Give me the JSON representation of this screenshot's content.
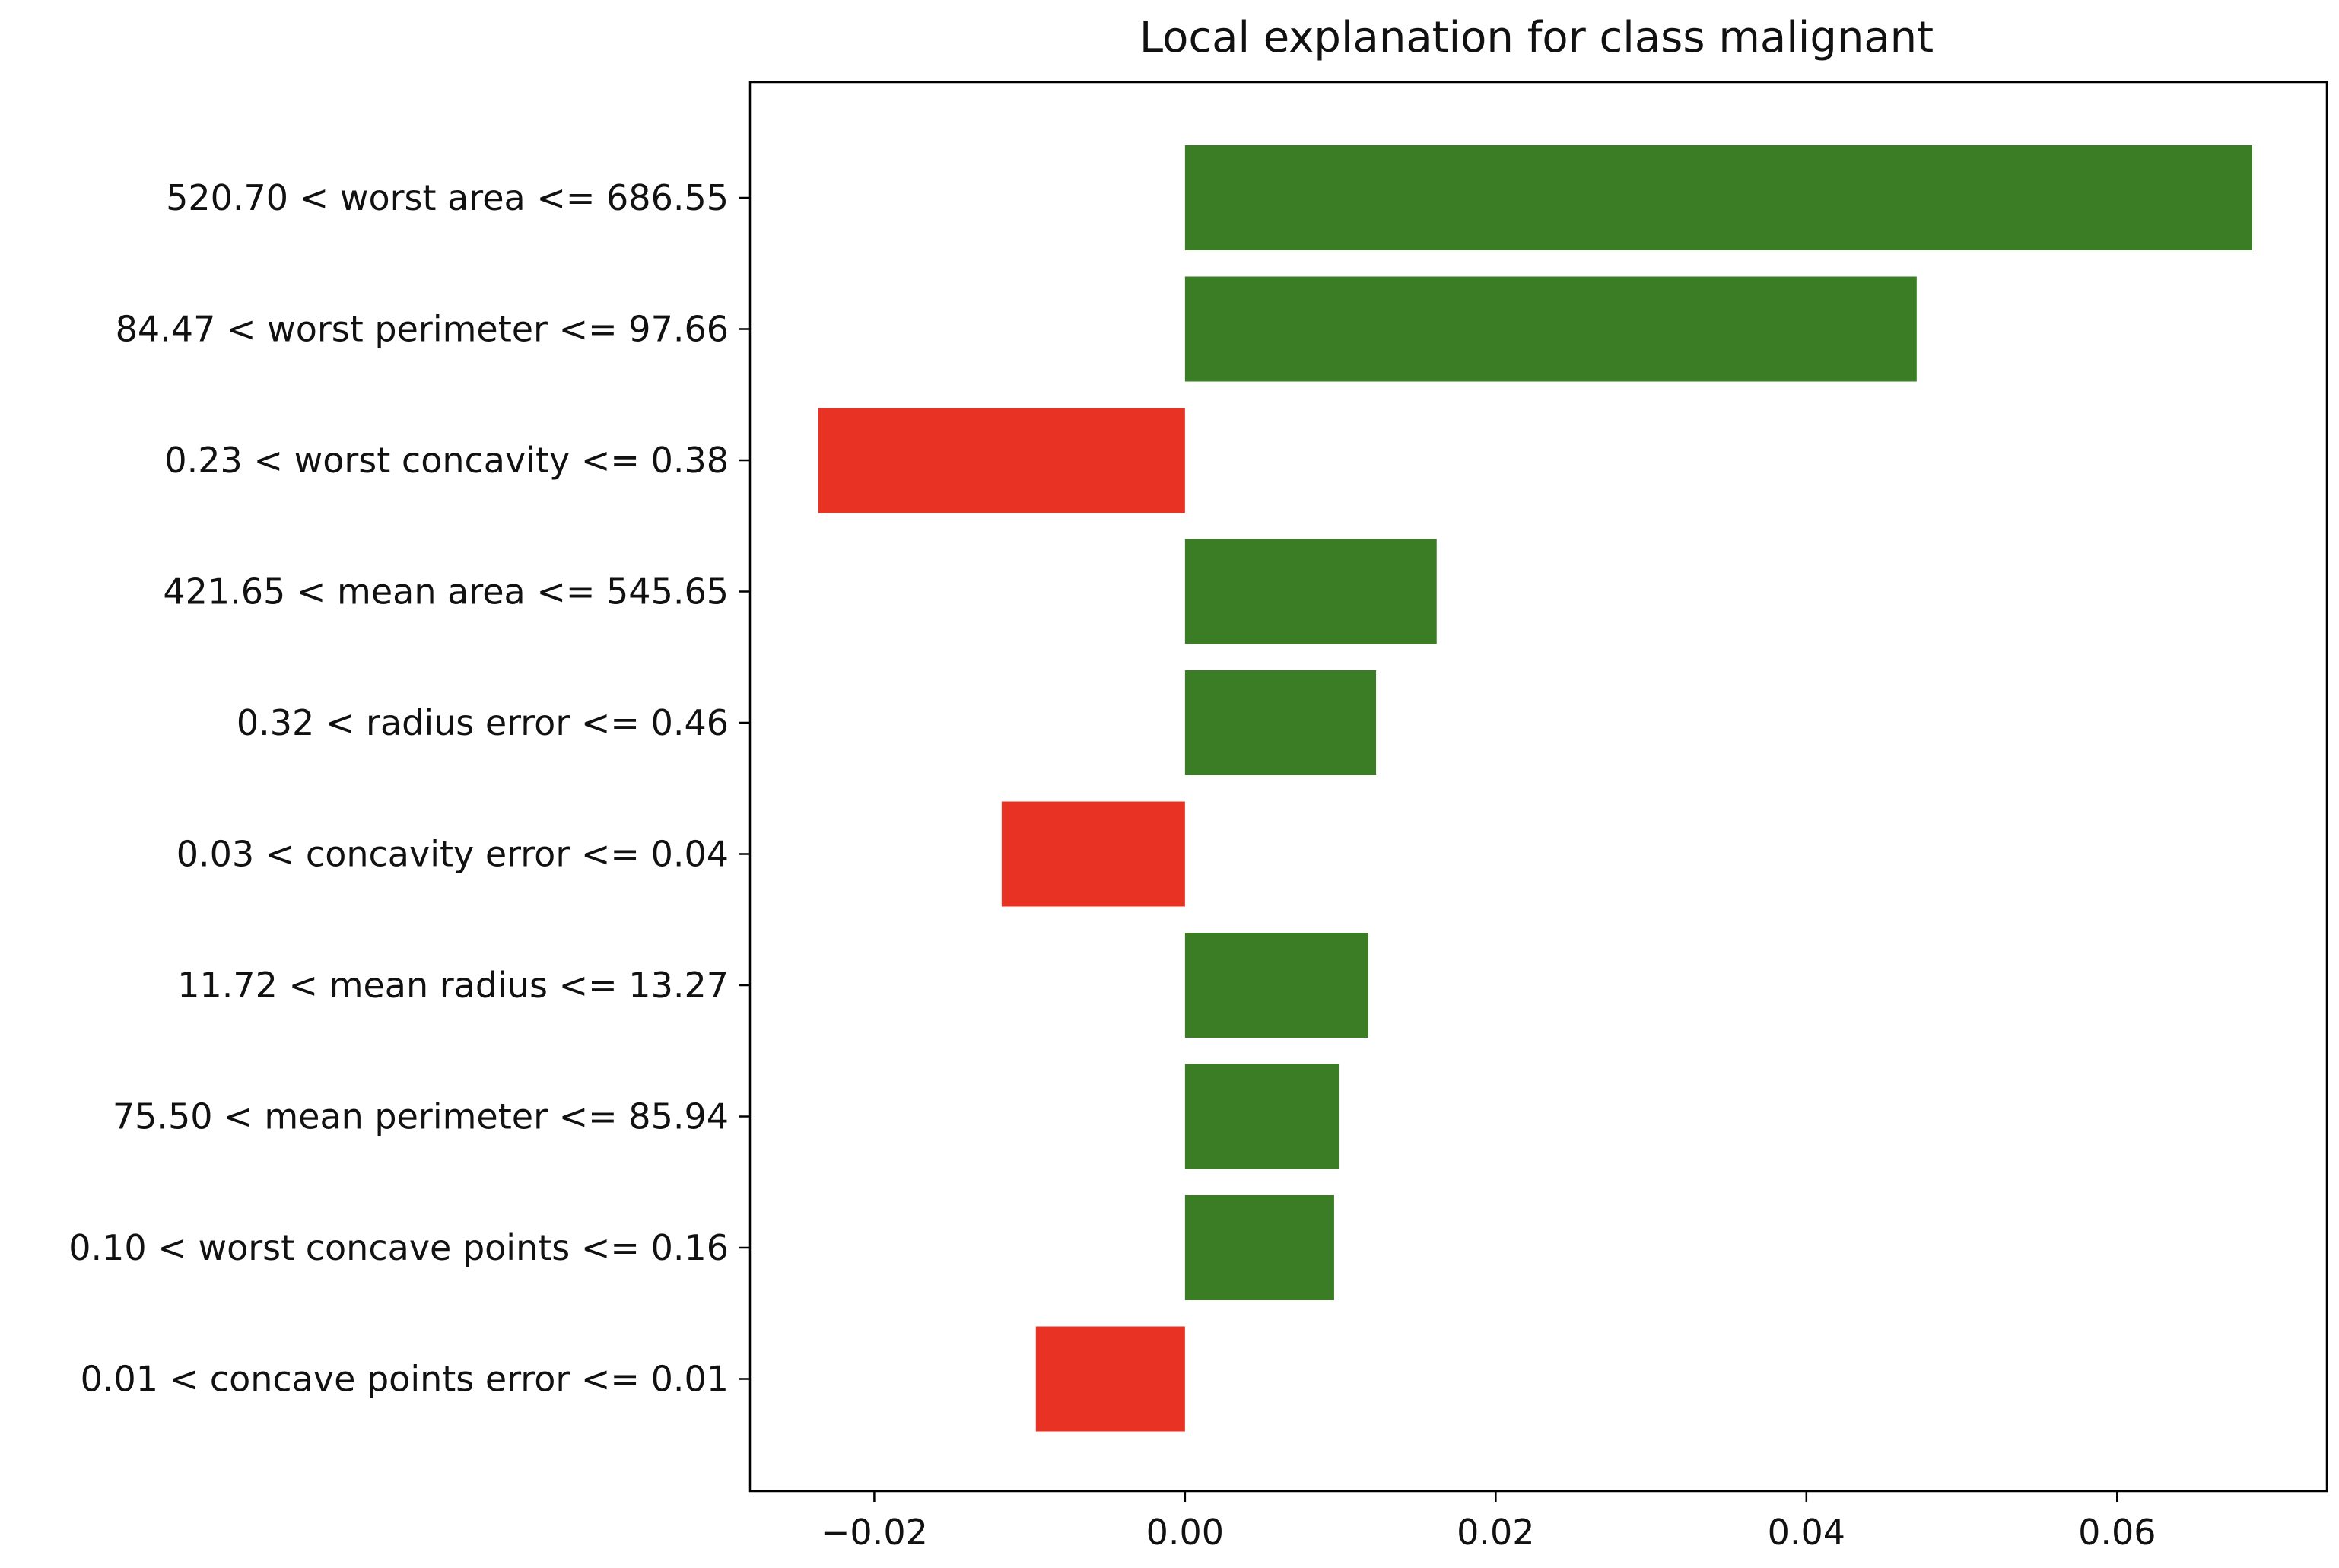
{
  "chart_data": {
    "type": "bar",
    "orientation": "horizontal",
    "title": "Local explanation for class malignant",
    "xlabel": "",
    "ylabel": "",
    "xlim": [
      -0.028,
      0.0735
    ],
    "x_ticks": [
      -0.02,
      0.0,
      0.02,
      0.04,
      0.06
    ],
    "x_tick_labels": [
      "−0.02",
      "0.00",
      "0.02",
      "0.04",
      "0.06"
    ],
    "grid": false,
    "legend": "none",
    "positive_color": "#3a7d24",
    "negative_color": "#e83224",
    "categories": [
      "520.70 < worst area <= 686.55",
      "84.47 < worst perimeter <= 97.66",
      "0.23 < worst concavity <= 0.38",
      "421.65 < mean area <= 545.65",
      "0.32 < radius error <= 0.46",
      "0.03 < concavity error <= 0.04",
      "11.72 < mean radius <= 13.27",
      "75.50 < mean perimeter <= 85.94",
      "0.10 < worst concave points <= 0.16",
      "0.01 < concave points error <= 0.01"
    ],
    "values": [
      0.0687,
      0.0471,
      -0.0236,
      0.0162,
      0.0123,
      -0.0118,
      0.0118,
      0.0099,
      0.0096,
      -0.0096
    ]
  }
}
